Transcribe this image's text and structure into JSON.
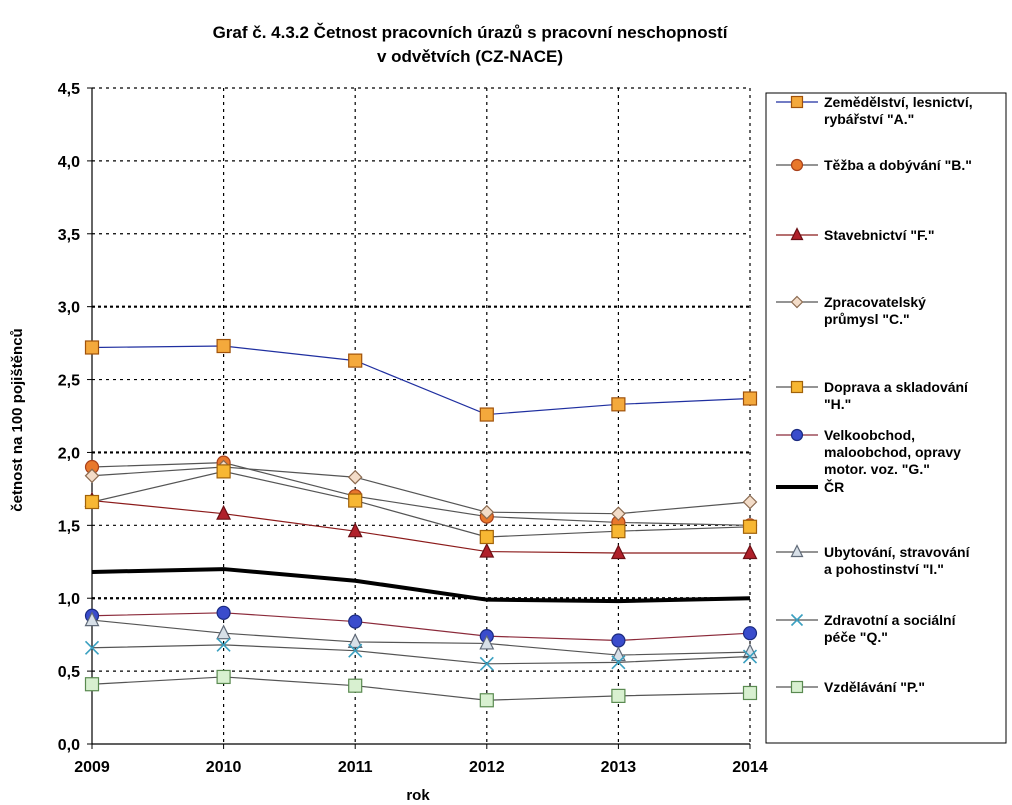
{
  "chart_data": {
    "type": "line",
    "title_lines": [
      "Graf č. 4.3.2  Četnost pracovních úrazů s pracovní neschopností",
      "v odvětvích (CZ-NACE)"
    ],
    "xlabel": "rok",
    "ylabel": "četnost na 100 pojištěnců",
    "x": [
      "2009",
      "2010",
      "2011",
      "2012",
      "2013",
      "2014"
    ],
    "ylim": [
      0,
      4.5
    ],
    "yticks": [
      "0,0",
      "0,5",
      "1,0",
      "1,5",
      "2,0",
      "2,5",
      "3,0",
      "3,5",
      "4,0",
      "4,5"
    ],
    "grid": true,
    "legend_position": "right",
    "series": [
      {
        "name_lines": [
          "Zemědělství, lesnictví,",
          "rybářství \"A.\""
        ],
        "values": [
          2.72,
          2.73,
          2.63,
          2.26,
          2.33,
          2.37
        ],
        "line_color": "#1f2fa0",
        "marker": "square",
        "marker_fill": "#f4a93c",
        "marker_stroke": "#a0520a"
      },
      {
        "name_lines": [
          "Těžba a dobývání \"B.\""
        ],
        "values": [
          1.9,
          1.93,
          1.7,
          1.56,
          1.52,
          1.5
        ],
        "line_color": "#555555",
        "marker": "circle",
        "marker_fill": "#e8782c",
        "marker_stroke": "#a8401a"
      },
      {
        "name_lines": [
          "Stavebnictví \"F.\""
        ],
        "values": [
          1.67,
          1.58,
          1.46,
          1.32,
          1.31,
          1.31
        ],
        "line_color": "#8b1a1a",
        "marker": "triangle",
        "marker_fill": "#b0202a",
        "marker_stroke": "#6a0f14"
      },
      {
        "name_lines": [
          "Zpracovatelský",
          "průmysl \"C.\""
        ],
        "values": [
          1.84,
          1.9,
          1.83,
          1.59,
          1.58,
          1.66
        ],
        "line_color": "#555555",
        "marker": "diamond",
        "marker_fill": "#f3dcc8",
        "marker_stroke": "#8a6a50"
      },
      {
        "name_lines": [
          "Doprava a skladování",
          "\"H.\""
        ],
        "values": [
          1.66,
          1.87,
          1.67,
          1.42,
          1.46,
          1.49
        ],
        "line_color": "#555555",
        "marker": "square",
        "marker_fill": "#f7b733",
        "marker_stroke": "#a0620a"
      },
      {
        "name_lines": [
          "Velkoobchod,",
          "maloobchod, opravy",
          "motor. voz. \"G.\""
        ],
        "values": [
          0.88,
          0.9,
          0.84,
          0.74,
          0.71,
          0.76
        ],
        "line_color": "#8b2a3a",
        "marker": "circle",
        "marker_fill": "#3a4ccc",
        "marker_stroke": "#1a2a80"
      },
      {
        "name_lines": [
          "ČR"
        ],
        "values": [
          1.18,
          1.2,
          1.12,
          0.99,
          0.98,
          1.0
        ],
        "line_color": "#000000",
        "marker": "none",
        "bold": true
      },
      {
        "name_lines": [
          "Ubytování, stravování",
          "a pohostinství \"I.\""
        ],
        "values": [
          0.85,
          0.76,
          0.7,
          0.69,
          0.61,
          0.63
        ],
        "line_color": "#555555",
        "marker": "triangle",
        "marker_fill": "#d8e0e8",
        "marker_stroke": "#606a78"
      },
      {
        "name_lines": [
          "Zdravotní a sociální",
          "péče \"Q.\""
        ],
        "values": [
          0.66,
          0.68,
          0.64,
          0.55,
          0.56,
          0.6
        ],
        "line_color": "#555555",
        "marker": "x",
        "marker_fill": "none",
        "marker_stroke": "#3aa0c0"
      },
      {
        "name_lines": [
          "Vzdělávání \"P.\""
        ],
        "values": [
          0.41,
          0.46,
          0.4,
          0.3,
          0.33,
          0.35
        ],
        "line_color": "#555555",
        "marker": "square",
        "marker_fill": "#d8f0d0",
        "marker_stroke": "#5a8a50"
      }
    ]
  }
}
